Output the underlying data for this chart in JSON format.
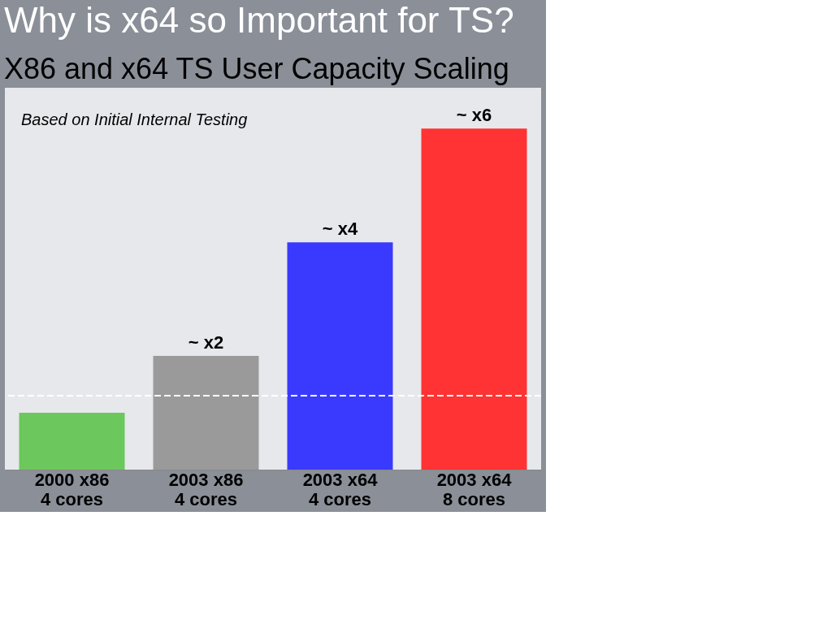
{
  "chart_data": {
    "type": "bar",
    "title": "Why is x64 so Important for TS?",
    "subtitle": "X86 and x64 TS User Capacity Scaling",
    "categories": [
      "2000 x86\n4 cores",
      "2003 x86\n4 cores",
      "2003 x64\n4 cores",
      "2003 x64\n8 cores"
    ],
    "values": [
      1,
      2,
      4,
      6
    ],
    "colors": [
      "#6cc75c",
      "#9a9a9a",
      "#3a3aff",
      "#ff3333"
    ],
    "value_labels": [
      null,
      "~  x2",
      "~  x4",
      "~  x6"
    ],
    "tick_labels": "x",
    "ref_lines": [
      {
        "axis": "y",
        "value": 1.3,
        "label": null,
        "line_style": "dashed",
        "color": "#ffffff"
      }
    ],
    "annotations": [
      "Based on Initial Internal Testing"
    ],
    "grid": false
  }
}
